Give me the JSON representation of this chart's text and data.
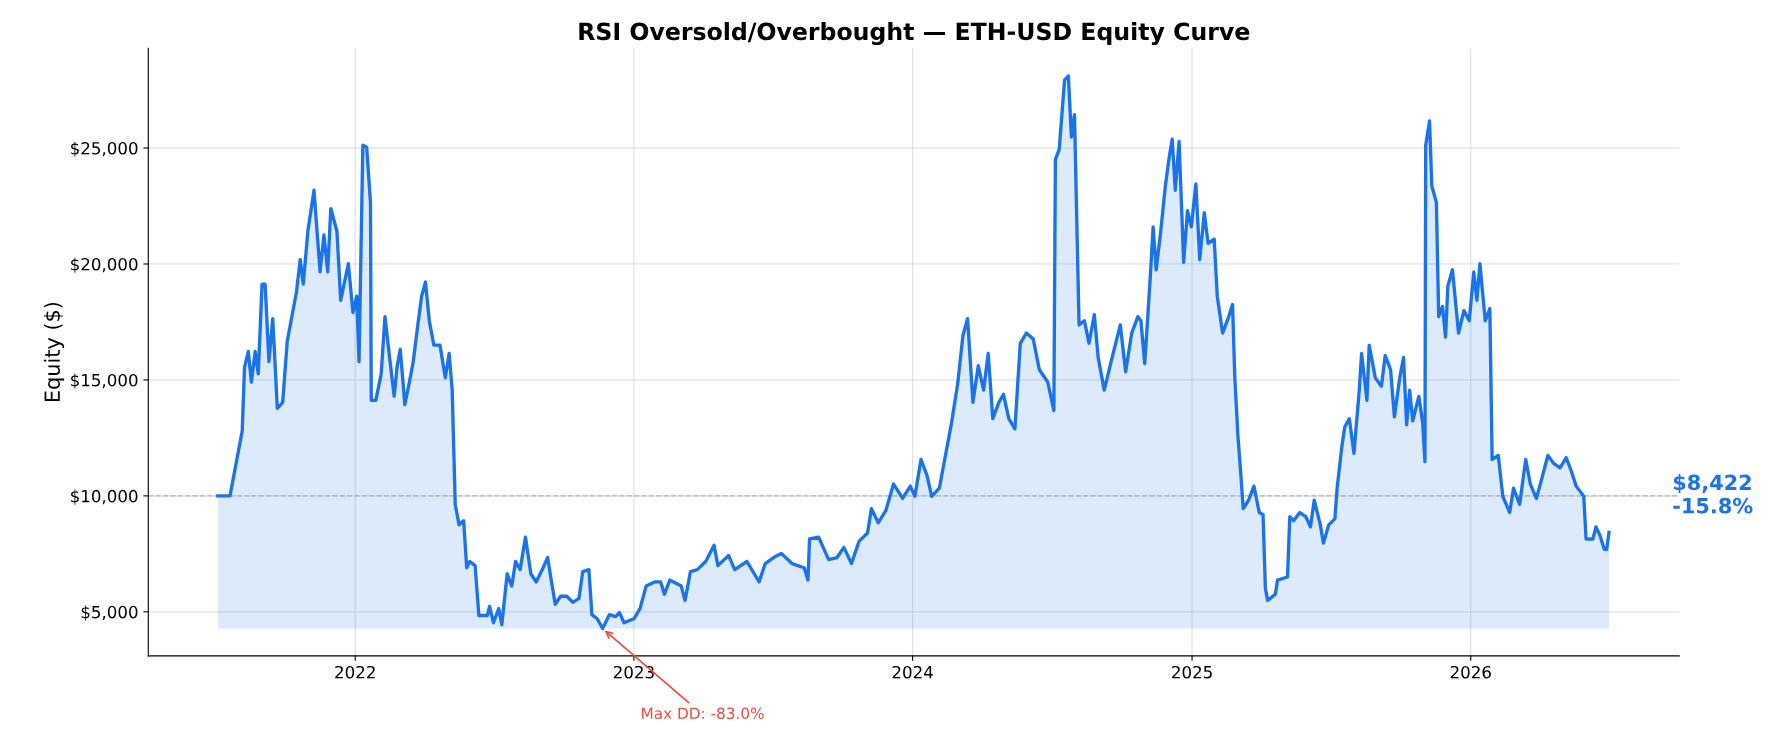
{
  "chart_data": {
    "type": "area",
    "title": "RSI Oversold/Overbought — ETH-USD Equity Curve",
    "ylabel": "Equity ($)",
    "xlim": [
      "2021-04-05",
      "2026-10-01"
    ],
    "ylim": [
      3100,
      29300
    ],
    "xticks": [
      {
        "value": "2022-01-01",
        "label": "2022"
      },
      {
        "value": "2023-01-01",
        "label": "2023"
      },
      {
        "value": "2024-01-01",
        "label": "2024"
      },
      {
        "value": "2025-01-01",
        "label": "2025"
      },
      {
        "value": "2026-01-01",
        "label": "2026"
      }
    ],
    "yticks": [
      {
        "value": 5000,
        "label": "$5,000"
      },
      {
        "value": 10000,
        "label": "$10,000"
      },
      {
        "value": 15000,
        "label": "$15,000"
      },
      {
        "value": 20000,
        "label": "$20,000"
      },
      {
        "value": 25000,
        "label": "$25,000"
      }
    ],
    "grid": true,
    "ref_lines": [
      {
        "axis": "y",
        "value": 10000,
        "color": "#b0b0b0",
        "line_style": "dashed"
      }
    ],
    "annotations": [
      {
        "text": "Max DD: -83.0%",
        "x": "2022-11-21",
        "y": 4280
      },
      "$8,422\n-15.8%"
    ],
    "series": [
      {
        "color": "#1a73e8",
        "x": [
          "2021-07-05",
          "2021-07-21",
          "2021-08-06",
          "2021-08-09",
          "2021-08-14",
          "2021-08-18",
          "2021-08-23",
          "2021-08-27",
          "2021-09-01",
          "2021-09-05",
          "2021-09-10",
          "2021-09-15",
          "2021-09-21",
          "2021-09-28",
          "2021-10-04",
          "2021-10-09",
          "2021-10-16",
          "2021-10-21",
          "2021-10-25",
          "2021-10-31",
          "2021-11-04",
          "2021-11-08",
          "2021-11-16",
          "2021-11-21",
          "2021-11-26",
          "2021-11-30",
          "2021-12-08",
          "2021-12-13",
          "2021-12-23",
          "2021-12-29",
          "2022-01-03",
          "2022-01-06",
          "2022-01-11",
          "2022-01-16",
          "2022-01-21",
          "2022-01-22",
          "2022-01-28",
          "2022-02-04",
          "2022-02-09",
          "2022-02-15",
          "2022-02-21",
          "2022-02-25",
          "2022-03-01",
          "2022-03-07",
          "2022-03-13",
          "2022-03-18",
          "2022-03-24",
          "2022-03-29",
          "2022-04-03",
          "2022-04-08",
          "2022-04-14",
          "2022-04-22",
          "2022-04-29",
          "2022-05-04",
          "2022-05-08",
          "2022-05-12",
          "2022-05-17",
          "2022-05-23",
          "2022-05-27",
          "2022-05-31",
          "2022-06-07",
          "2022-06-12",
          "2022-06-23",
          "2022-06-26",
          "2022-07-01",
          "2022-07-08",
          "2022-07-12",
          "2022-07-19",
          "2022-07-25",
          "2022-07-30",
          "2022-08-05",
          "2022-08-12",
          "2022-08-19",
          "2022-08-26",
          "2022-09-03",
          "2022-09-10",
          "2022-09-16",
          "2022-09-20",
          "2022-09-27",
          "2022-10-05",
          "2022-10-13",
          "2022-10-21",
          "2022-10-26",
          "2022-11-03",
          "2022-11-07",
          "2022-11-14",
          "2022-11-21",
          "2022-11-30",
          "2022-12-08",
          "2022-12-13",
          "2022-12-19",
          "2023-01-01",
          "2023-01-09",
          "2023-01-17",
          "2023-01-28",
          "2023-02-05",
          "2023-02-10",
          "2023-02-17",
          "2023-03-04",
          "2023-03-09",
          "2023-03-16",
          "2023-03-25",
          "2023-04-05",
          "2023-04-16",
          "2023-04-21",
          "2023-05-05",
          "2023-05-13",
          "2023-05-29",
          "2023-06-14",
          "2023-06-22",
          "2023-07-03",
          "2023-07-13",
          "2023-07-27",
          "2023-08-12",
          "2023-08-17",
          "2023-08-19",
          "2023-08-31",
          "2023-09-13",
          "2023-09-24",
          "2023-10-03",
          "2023-10-13",
          "2023-10-23",
          "2023-11-03",
          "2023-11-08",
          "2023-11-17",
          "2023-11-27",
          "2023-12-07",
          "2023-12-19",
          "2023-12-29",
          "2024-01-04",
          "2024-01-12",
          "2024-01-20",
          "2024-01-26",
          "2024-02-05",
          "2024-02-13",
          "2024-02-21",
          "2024-02-29",
          "2024-03-07",
          "2024-03-13",
          "2024-03-20",
          "2024-03-27",
          "2024-04-03",
          "2024-04-09",
          "2024-04-15",
          "2024-04-23",
          "2024-04-29",
          "2024-05-06",
          "2024-05-14",
          "2024-05-21",
          "2024-05-29",
          "2024-06-07",
          "2024-06-15",
          "2024-06-26",
          "2024-07-04",
          "2024-07-06",
          "2024-07-11",
          "2024-07-18",
          "2024-07-23",
          "2024-07-27",
          "2024-07-31",
          "2024-08-06",
          "2024-08-13",
          "2024-08-19",
          "2024-08-26",
          "2024-08-31",
          "2024-09-08",
          "2024-09-17",
          "2024-09-29",
          "2024-10-06",
          "2024-10-14",
          "2024-10-22",
          "2024-10-26",
          "2024-10-31",
          "2024-11-04",
          "2024-11-08",
          "2024-11-11",
          "2024-11-15",
          "2024-11-21",
          "2024-11-27",
          "2024-12-02",
          "2024-12-06",
          "2024-12-10",
          "2024-12-15",
          "2024-12-21",
          "2024-12-26",
          "2024-12-31",
          "2025-01-06",
          "2025-01-11",
          "2025-01-17",
          "2025-01-22",
          "2025-01-30",
          "2025-02-03",
          "2025-02-10",
          "2025-02-18",
          "2025-02-23",
          "2025-02-26",
          "2025-03-02",
          "2025-03-06",
          "2025-03-09",
          "2025-03-16",
          "2025-03-23",
          "2025-03-30",
          "2025-04-04",
          "2025-04-07",
          "2025-04-10",
          "2025-04-20",
          "2025-04-23",
          "2025-05-06",
          "2025-05-09",
          "2025-05-14",
          "2025-05-22",
          "2025-05-30",
          "2025-06-05",
          "2025-06-10",
          "2025-06-18",
          "2025-06-22",
          "2025-06-29",
          "2025-07-07",
          "2025-07-10",
          "2025-07-16",
          "2025-07-20",
          "2025-07-26",
          "2025-08-01",
          "2025-08-08",
          "2025-08-11",
          "2025-08-18",
          "2025-08-21",
          "2025-08-29",
          "2025-09-06",
          "2025-09-11",
          "2025-09-18",
          "2025-09-23",
          "2025-09-30",
          "2025-10-05",
          "2025-10-09",
          "2025-10-13",
          "2025-10-17",
          "2025-10-25",
          "2025-10-30",
          "2025-11-02",
          "2025-11-03",
          "2025-11-08",
          "2025-11-11",
          "2025-11-17",
          "2025-11-20",
          "2025-11-25",
          "2025-11-29",
          "2025-12-02",
          "2025-12-08",
          "2025-12-16",
          "2025-12-23",
          "2025-12-30",
          "2026-01-05",
          "2026-01-09",
          "2026-01-13",
          "2026-01-20",
          "2026-01-26",
          "2026-01-29",
          "2026-02-06",
          "2026-02-12",
          "2026-02-21",
          "2026-02-26",
          "2026-03-06",
          "2026-03-14",
          "2026-03-20",
          "2026-03-28",
          "2026-04-05",
          "2026-04-12",
          "2026-04-20",
          "2026-04-28",
          "2026-05-06",
          "2026-05-13",
          "2026-05-19",
          "2026-05-29",
          "2026-06-01",
          "2026-06-10",
          "2026-06-14",
          "2026-06-19",
          "2026-06-25",
          "2026-06-28",
          "2026-07-01"
        ],
        "values": [
          10000,
          10000,
          12800,
          15530,
          16230,
          14910,
          16230,
          15260,
          19130,
          19130,
          15790,
          17640,
          13770,
          14030,
          16670,
          17550,
          18780,
          20190,
          19130,
          21420,
          22300,
          23180,
          19660,
          21250,
          19660,
          22390,
          21420,
          18430,
          20010,
          17900,
          18610,
          15790,
          25120,
          25030,
          22650,
          14120,
          14120,
          15260,
          17730,
          15970,
          14290,
          15610,
          16320,
          13940,
          14910,
          15790,
          17370,
          18610,
          19220,
          17550,
          16500,
          16500,
          15090,
          16140,
          14560,
          9630,
          8750,
          8930,
          6900,
          7170,
          6990,
          4840,
          4840,
          5230,
          4530,
          5140,
          4440,
          6640,
          6110,
          7170,
          6820,
          8220,
          6640,
          6290,
          6820,
          7340,
          6110,
          5320,
          5670,
          5670,
          5410,
          5580,
          6730,
          6820,
          4880,
          4700,
          4280,
          4880,
          4790,
          4970,
          4530,
          4700,
          5140,
          6110,
          6290,
          6290,
          5760,
          6370,
          6110,
          5490,
          6730,
          6820,
          7170,
          7870,
          6990,
          7430,
          6820,
          7170,
          6290,
          7080,
          7340,
          7520,
          7080,
          6900,
          6370,
          8140,
          8220,
          7250,
          7340,
          7780,
          7080,
          8050,
          8400,
          9450,
          8840,
          9370,
          10510,
          9890,
          10420,
          9980,
          11570,
          10860,
          9980,
          10330,
          11740,
          13150,
          14820,
          16930,
          17640,
          14030,
          15610,
          14560,
          16140,
          13330,
          14030,
          14380,
          13330,
          12890,
          16580,
          17020,
          16760,
          15440,
          14910,
          13680,
          24500,
          24940,
          27930,
          28110,
          25470,
          26440,
          17370,
          17550,
          16580,
          17810,
          15970,
          14560,
          15790,
          17370,
          15350,
          17020,
          17730,
          17550,
          15700,
          17730,
          19840,
          21600,
          19750,
          21420,
          23360,
          24590,
          25380,
          23180,
          25290,
          20070,
          22300,
          21600,
          23450,
          20190,
          22210,
          20890,
          21070,
          18610,
          17020,
          17730,
          18250,
          15090,
          12620,
          10860,
          9450,
          9810,
          10420,
          9280,
          9190,
          6020,
          5490,
          5760,
          6370,
          6500,
          9100,
          8930,
          9280,
          9100,
          8660,
          9810,
          8750,
          7960,
          8750,
          9010,
          10330,
          12090,
          12970,
          13330,
          11830,
          14560,
          16140,
          14120,
          16490,
          15090,
          14730,
          16050,
          15440,
          13410,
          15090,
          15970,
          13060,
          14560,
          13240,
          14290,
          13150,
          11480,
          25120,
          26170,
          23360,
          22650,
          17730,
          18170,
          16850,
          19050,
          19750,
          17020,
          17990,
          17550,
          19660,
          18430,
          20010,
          17550,
          18080,
          11570,
          11740,
          9980,
          9280,
          10330,
          9630,
          11570,
          10510,
          9890,
          10860,
          11740,
          11390,
          11210,
          11650,
          11040,
          10420,
          9980,
          8140,
          8140,
          8660,
          8310,
          7690,
          7690,
          8422
        ]
      }
    ]
  }
}
